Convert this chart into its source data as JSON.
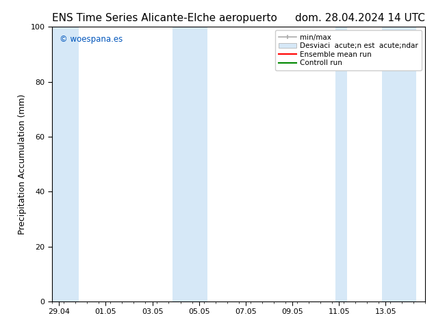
{
  "title_left": "ENS Time Series Alicante-Elche aeropuerto",
  "title_right": "dom. 28.04.2024 14 UTC",
  "ylabel": "Precipitation Accumulation (mm)",
  "ylim": [
    0,
    100
  ],
  "yticks": [
    0,
    20,
    40,
    60,
    80,
    100
  ],
  "xtick_labels": [
    "29.04",
    "01.05",
    "03.05",
    "05.05",
    "07.05",
    "09.05",
    "11.05",
    "13.05"
  ],
  "x_ticks_val": [
    0,
    2,
    4,
    6,
    8,
    10,
    12,
    14
  ],
  "x_min": -0.3,
  "x_max": 15.3,
  "shaded_color": "#d6e8f7",
  "shaded_bands": [
    [
      -0.3,
      0.85
    ],
    [
      4.85,
      6.35
    ],
    [
      11.85,
      12.35
    ],
    [
      13.85,
      15.3
    ]
  ],
  "watermark_text": "© woespana.es",
  "watermark_color": "#0055bb",
  "background_color": "#ffffff",
  "legend_minmax_color": "#aaaaaa",
  "legend_std_color": "#d6e8f7",
  "legend_ens_color": "#ff0000",
  "legend_ctrl_color": "#008800",
  "legend_label_minmax": "min/max",
  "legend_label_std": "Desviaci  acute;n est  acute;ndar",
  "legend_label_ens": "Ensemble mean run",
  "legend_label_ctrl": "Controll run",
  "title_fontsize": 11,
  "tick_fontsize": 8,
  "ylabel_fontsize": 9
}
